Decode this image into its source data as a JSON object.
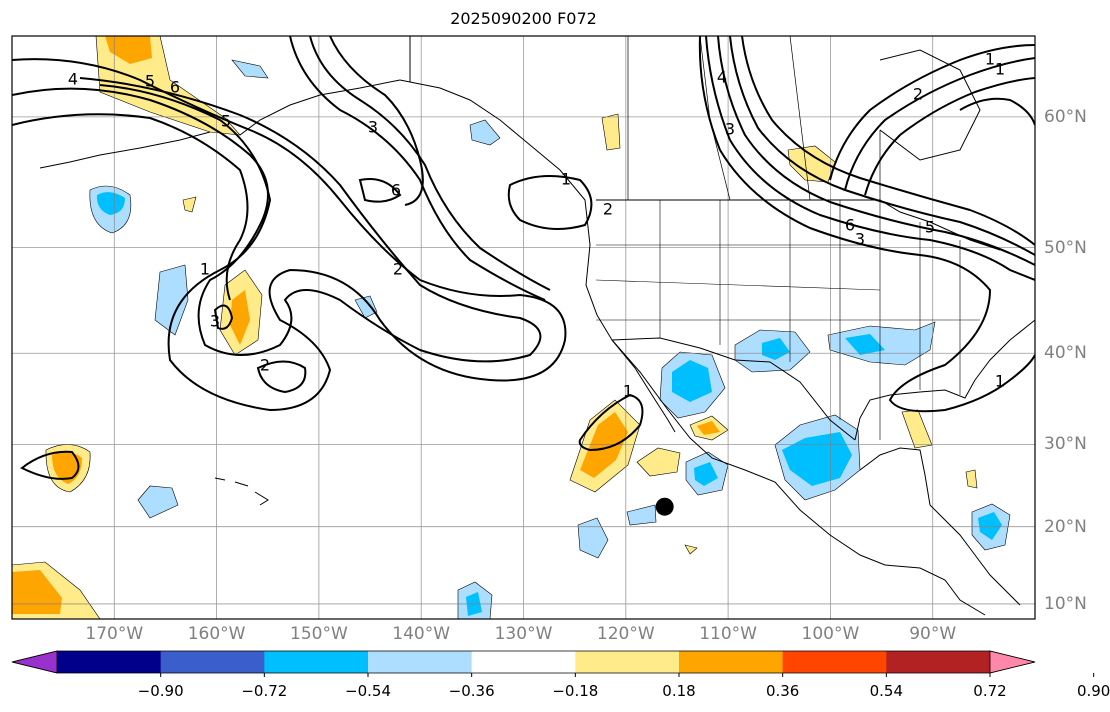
{
  "title": "2025090200 F072",
  "map": {
    "lon_labels": [
      {
        "lon": -170,
        "label": "170°W"
      },
      {
        "lon": -160,
        "label": "160°W"
      },
      {
        "lon": -150,
        "label": "150°W"
      },
      {
        "lon": -140,
        "label": "140°W"
      },
      {
        "lon": -130,
        "label": "130°W"
      },
      {
        "lon": -120,
        "label": "120°W"
      },
      {
        "lon": -110,
        "label": "110°W"
      },
      {
        "lon": -100,
        "label": "100°W"
      },
      {
        "lon": -90,
        "label": "90°W"
      }
    ],
    "lat_labels": [
      {
        "lat": 60,
        "label": "60°N"
      },
      {
        "lat": 50,
        "label": "50°N"
      },
      {
        "lat": 40,
        "label": "40°N"
      },
      {
        "lat": 30,
        "label": "30°N"
      },
      {
        "lat": 20,
        "label": "20°N"
      },
      {
        "lat": 10,
        "label": "10°N"
      }
    ],
    "lon_range": [
      -180,
      -80
    ],
    "lat_range": [
      8,
      65
    ],
    "grid": true,
    "marker": {
      "lon": -116.2,
      "lat": 22.5,
      "color": "#000000"
    },
    "contour_labels": [
      "4",
      "5",
      "6",
      "3",
      "6",
      "5",
      "1",
      "3",
      "2",
      "2",
      "1",
      "1",
      "2",
      "4",
      "3",
      "2",
      "1",
      "6",
      "5",
      "3",
      "1",
      "1"
    ]
  },
  "colorbar": {
    "ticks": [
      "−0.90",
      "−0.72",
      "−0.54",
      "−0.36",
      "−0.18",
      "0.18",
      "0.36",
      "0.54",
      "0.72",
      "0.90"
    ],
    "colors": [
      "#9932CC",
      "#00008B",
      "#3A5FCD",
      "#00BFFF",
      "#ADDEFF",
      "#FFFFFF",
      "#FFEB8A",
      "#FFA500",
      "#FF4500",
      "#B22222",
      "#FF88AA"
    ],
    "extend": "both"
  }
}
